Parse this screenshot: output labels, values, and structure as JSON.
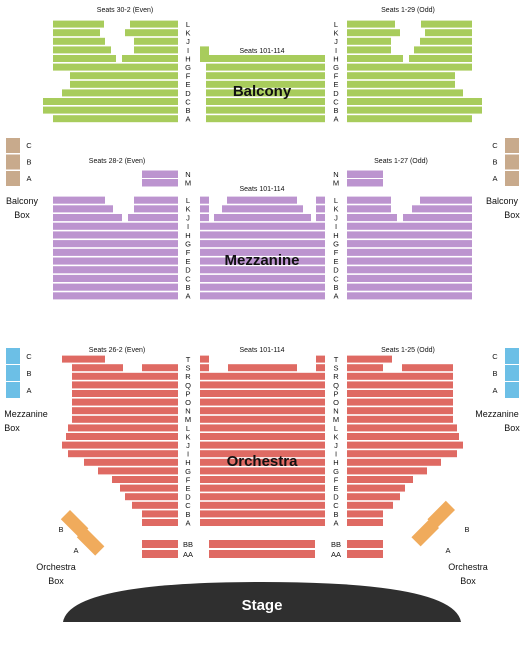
{
  "colors": {
    "balcony": "#a8cc5c",
    "balcony_box": "#c8aa8c",
    "mezzanine": "#bc94cf",
    "mezzanine_box": "#6cbfe6",
    "orchestra": "#df6a63",
    "orchestra_box": "#f0ab5c",
    "stage": "#2f2f2f"
  },
  "balcony": {
    "title": "Balcony",
    "left_header": "Seats 30-2 (Even)",
    "center_header": "Seats 101-114",
    "right_header": "Seats 1-29 (Odd)",
    "rows": [
      "L",
      "K",
      "J",
      "I",
      "H",
      "G",
      "F",
      "E",
      "D",
      "C",
      "B",
      "A"
    ]
  },
  "balcony_box": {
    "label_line1": "Balcony",
    "label_line2": "Box",
    "rows": [
      "C",
      "B",
      "A"
    ]
  },
  "mezzanine": {
    "title": "Mezzanine",
    "left_header": "Seats 28-2 (Even)",
    "center_header": "Seats 101-114",
    "right_header": "Seats 1-27 (Odd)",
    "front_rows": [
      "N",
      "M"
    ],
    "rows": [
      "L",
      "K",
      "J",
      "I",
      "H",
      "G",
      "F",
      "E",
      "D",
      "C",
      "B",
      "A"
    ]
  },
  "mezzanine_box": {
    "label_line1": "Mezzanine",
    "label_line2": "Box",
    "rows": [
      "C",
      "B",
      "A"
    ]
  },
  "orchestra": {
    "title": "Orchestra",
    "left_header": "Seats 26-2 (Even)",
    "center_header": "Seats 101-114",
    "right_header": "Seats 1-25 (Odd)",
    "rows": [
      "T",
      "S",
      "R",
      "Q",
      "P",
      "O",
      "N",
      "M",
      "L",
      "K",
      "J",
      "I",
      "H",
      "G",
      "F",
      "E",
      "D",
      "C",
      "B",
      "A"
    ],
    "pit_rows": [
      "BB",
      "AA"
    ]
  },
  "orchestra_box": {
    "label_line1": "Orchestra",
    "label_line2": "Box",
    "rows": [
      "B",
      "A"
    ]
  },
  "stage": {
    "label": "Stage"
  }
}
